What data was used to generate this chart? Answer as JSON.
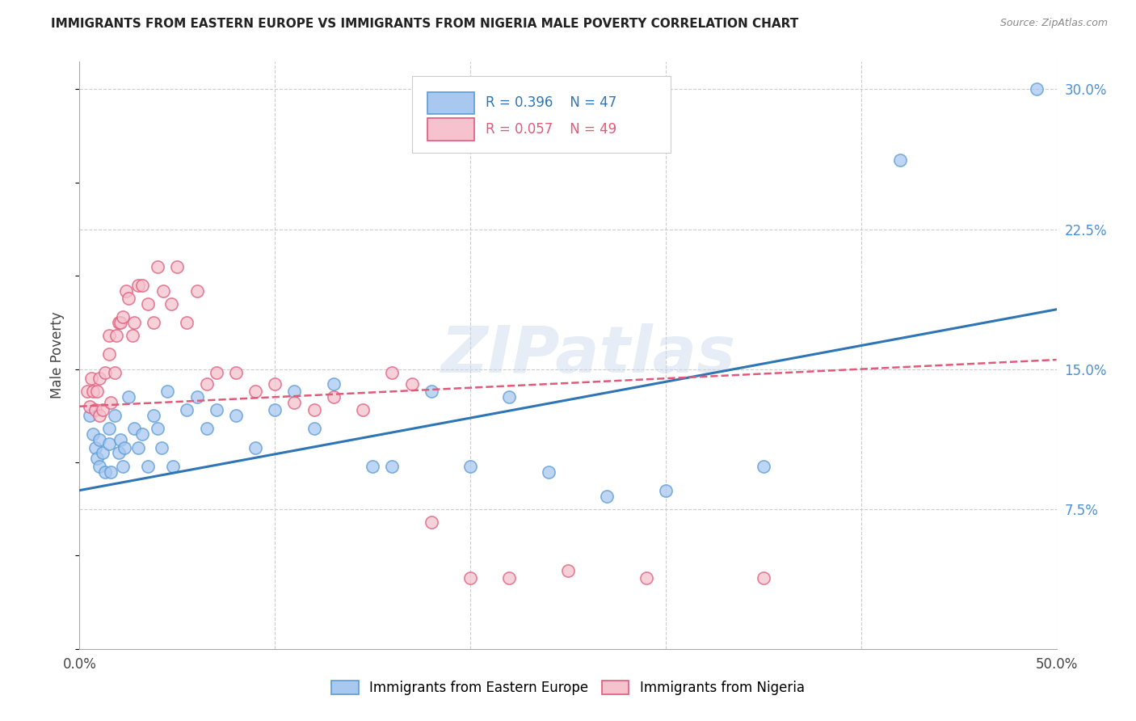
{
  "title": "IMMIGRANTS FROM EASTERN EUROPE VS IMMIGRANTS FROM NIGERIA MALE POVERTY CORRELATION CHART",
  "source": "Source: ZipAtlas.com",
  "ylabel": "Male Poverty",
  "xlim": [
    0.0,
    0.5
  ],
  "ylim": [
    0.0,
    0.315
  ],
  "xticks": [
    0.0,
    0.1,
    0.2,
    0.3,
    0.4,
    0.5
  ],
  "xticklabels": [
    "0.0%",
    "",
    "",
    "",
    "",
    "50.0%"
  ],
  "yticks_right": [
    0.075,
    0.15,
    0.225,
    0.3
  ],
  "ytick_labels_right": [
    "7.5%",
    "15.0%",
    "22.5%",
    "30.0%"
  ],
  "grid_color": "#cccccc",
  "background_color": "#ffffff",
  "watermark": "ZIPatlas",
  "series": [
    {
      "name": "Immigrants from Eastern Europe",
      "R": 0.396,
      "N": 47,
      "scatter_color": "#a8c8f0",
      "edge_color": "#5b9bd5",
      "line_color": "#2e75b6",
      "line_style": "solid",
      "x": [
        0.005,
        0.007,
        0.008,
        0.009,
        0.01,
        0.01,
        0.012,
        0.013,
        0.015,
        0.015,
        0.016,
        0.018,
        0.02,
        0.021,
        0.022,
        0.023,
        0.025,
        0.028,
        0.03,
        0.032,
        0.035,
        0.038,
        0.04,
        0.042,
        0.045,
        0.048,
        0.055,
        0.06,
        0.065,
        0.07,
        0.08,
        0.09,
        0.1,
        0.11,
        0.12,
        0.13,
        0.15,
        0.16,
        0.18,
        0.2,
        0.22,
        0.24,
        0.27,
        0.3,
        0.35,
        0.42,
        0.49
      ],
      "y": [
        0.125,
        0.115,
        0.108,
        0.102,
        0.112,
        0.098,
        0.105,
        0.095,
        0.118,
        0.11,
        0.095,
        0.125,
        0.105,
        0.112,
        0.098,
        0.108,
        0.135,
        0.118,
        0.108,
        0.115,
        0.098,
        0.125,
        0.118,
        0.108,
        0.138,
        0.098,
        0.128,
        0.135,
        0.118,
        0.128,
        0.125,
        0.108,
        0.128,
        0.138,
        0.118,
        0.142,
        0.098,
        0.098,
        0.138,
        0.098,
        0.135,
        0.095,
        0.082,
        0.085,
        0.098,
        0.262,
        0.3
      ],
      "trend_x": [
        0.0,
        0.5
      ],
      "trend_y": [
        0.085,
        0.182
      ]
    },
    {
      "name": "Immigrants from Nigeria",
      "R": 0.057,
      "N": 49,
      "scatter_color": "#f5c2ce",
      "edge_color": "#e05a7a",
      "line_color": "#e05a7a",
      "line_style": "dashed",
      "x": [
        0.004,
        0.005,
        0.006,
        0.007,
        0.008,
        0.009,
        0.01,
        0.01,
        0.012,
        0.013,
        0.015,
        0.015,
        0.016,
        0.018,
        0.019,
        0.02,
        0.021,
        0.022,
        0.024,
        0.025,
        0.027,
        0.028,
        0.03,
        0.032,
        0.035,
        0.038,
        0.04,
        0.043,
        0.047,
        0.05,
        0.055,
        0.06,
        0.065,
        0.07,
        0.08,
        0.09,
        0.1,
        0.11,
        0.12,
        0.13,
        0.145,
        0.16,
        0.17,
        0.18,
        0.2,
        0.22,
        0.25,
        0.29,
        0.35
      ],
      "y": [
        0.138,
        0.13,
        0.145,
        0.138,
        0.128,
        0.138,
        0.145,
        0.125,
        0.128,
        0.148,
        0.168,
        0.158,
        0.132,
        0.148,
        0.168,
        0.175,
        0.175,
        0.178,
        0.192,
        0.188,
        0.168,
        0.175,
        0.195,
        0.195,
        0.185,
        0.175,
        0.205,
        0.192,
        0.185,
        0.205,
        0.175,
        0.192,
        0.142,
        0.148,
        0.148,
        0.138,
        0.142,
        0.132,
        0.128,
        0.135,
        0.128,
        0.148,
        0.142,
        0.068,
        0.038,
        0.038,
        0.042,
        0.038,
        0.038
      ],
      "trend_x": [
        0.0,
        0.5
      ],
      "trend_y": [
        0.13,
        0.155
      ]
    }
  ]
}
